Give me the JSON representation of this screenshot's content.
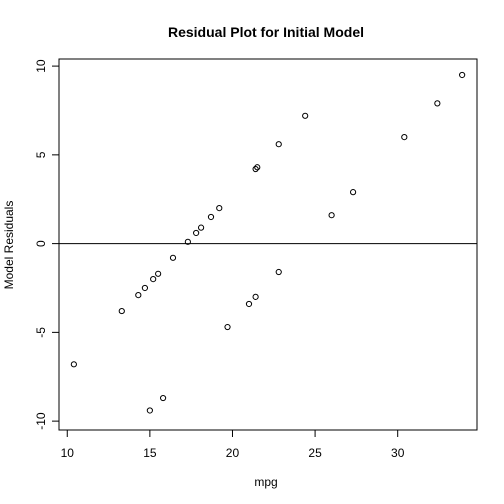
{
  "chart_data": {
    "type": "scatter",
    "title": "Residual Plot for Initial Model",
    "xlabel": "mpg",
    "ylabel": "Model Residuals",
    "xlim": [
      9.5,
      34.8
    ],
    "ylim": [
      -10.5,
      10.4
    ],
    "xticks": [
      10,
      15,
      20,
      25,
      30
    ],
    "xtick_labels": [
      "10",
      "15",
      "20",
      "25",
      "30"
    ],
    "yticks": [
      -10,
      -5,
      0,
      5,
      10
    ],
    "ytick_labels": [
      "-10",
      "-5",
      "0",
      "5",
      "10"
    ],
    "reference_line_y": 0,
    "grid": false,
    "legend": "none",
    "marker": "open-circle",
    "colors": {
      "points": "#000000",
      "axes": "#000000",
      "background": "#ffffff"
    },
    "points": [
      {
        "x": 10.4,
        "y": -6.8
      },
      {
        "x": 13.3,
        "y": -3.8
      },
      {
        "x": 14.3,
        "y": -2.9
      },
      {
        "x": 14.7,
        "y": -2.5
      },
      {
        "x": 15.0,
        "y": -9.4
      },
      {
        "x": 15.2,
        "y": -2.0
      },
      {
        "x": 15.5,
        "y": -1.7
      },
      {
        "x": 15.8,
        "y": -8.7
      },
      {
        "x": 16.4,
        "y": -0.8
      },
      {
        "x": 17.3,
        "y": 0.1
      },
      {
        "x": 17.8,
        "y": 0.6
      },
      {
        "x": 18.1,
        "y": 0.9
      },
      {
        "x": 18.7,
        "y": 1.5
      },
      {
        "x": 19.2,
        "y": 2.0
      },
      {
        "x": 19.7,
        "y": -4.7
      },
      {
        "x": 21.0,
        "y": -3.4
      },
      {
        "x": 21.4,
        "y": -3.0
      },
      {
        "x": 21.4,
        "y": 4.2
      },
      {
        "x": 21.5,
        "y": 4.3
      },
      {
        "x": 22.8,
        "y": -1.6
      },
      {
        "x": 22.8,
        "y": 5.6
      },
      {
        "x": 24.4,
        "y": 7.2
      },
      {
        "x": 26.0,
        "y": 1.6
      },
      {
        "x": 27.3,
        "y": 2.9
      },
      {
        "x": 30.4,
        "y": 6.0
      },
      {
        "x": 32.4,
        "y": 7.9
      },
      {
        "x": 33.9,
        "y": 9.5
      }
    ]
  }
}
